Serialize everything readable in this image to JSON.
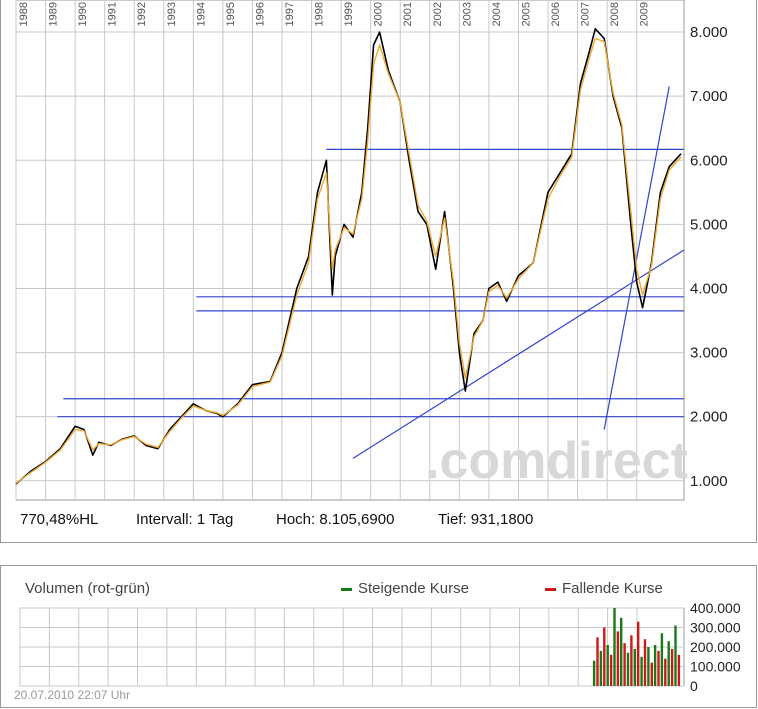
{
  "chart_data": [
    {
      "type": "line",
      "title": "",
      "xlabel": "",
      "ylabel": "",
      "x_ticks": [
        "1988",
        "1989",
        "1990",
        "1991",
        "1992",
        "1993",
        "1994",
        "1995",
        "1996",
        "1997",
        "1998",
        "1999",
        "2000",
        "2001",
        "2002",
        "2003",
        "2004",
        "2005",
        "2006",
        "2007",
        "2008",
        "2009"
      ],
      "y_ticks": [
        "1.000",
        "2.000",
        "3.000",
        "4.000",
        "5.000",
        "6.000",
        "7.000",
        "8.000"
      ],
      "y_tick_values": [
        1000,
        2000,
        3000,
        4000,
        5000,
        6000,
        7000,
        8000
      ],
      "ylim": [
        700,
        8500
      ],
      "xlim": [
        1988.0,
        2010.6
      ],
      "grid": true,
      "series": [
        {
          "color": "#000000",
          "x": [
            1988.0,
            1988.5,
            1989.0,
            1989.5,
            1990.0,
            1990.3,
            1990.6,
            1990.8,
            1991.2,
            1991.6,
            1992.0,
            1992.4,
            1992.8,
            1993.2,
            1993.6,
            1994.0,
            1994.4,
            1994.8,
            1995.0,
            1995.5,
            1996.0,
            1996.6,
            1997.0,
            1997.5,
            1997.9,
            1998.2,
            1998.5,
            1998.7,
            1998.8,
            1999.1,
            1999.4,
            1999.7,
            1999.9,
            2000.1,
            2000.3,
            2000.6,
            2001.0,
            2001.3,
            2001.6,
            2001.9,
            2002.2,
            2002.5,
            2002.8,
            2003.0,
            2003.2,
            2003.5,
            2003.8,
            2004.0,
            2004.3,
            2004.6,
            2005.0,
            2005.5,
            2006.0,
            2006.4,
            2006.8,
            2007.1,
            2007.4,
            2007.6,
            2007.9,
            2008.2,
            2008.5,
            2008.8,
            2009.0,
            2009.2,
            2009.5,
            2009.8,
            2010.1,
            2010.5
          ],
          "values": [
            950,
            1150,
            1300,
            1500,
            1850,
            1800,
            1400,
            1600,
            1550,
            1650,
            1700,
            1550,
            1500,
            1800,
            2000,
            2200,
            2100,
            2050,
            2000,
            2200,
            2500,
            2550,
            3000,
            4000,
            4500,
            5500,
            6000,
            3900,
            4500,
            5000,
            4800,
            5500,
            6500,
            7800,
            8000,
            7400,
            6900,
            6000,
            5200,
            5000,
            4300,
            5200,
            4000,
            3000,
            2400,
            3300,
            3500,
            4000,
            4100,
            3800,
            4200,
            4400,
            5500,
            5800,
            6100,
            7200,
            7700,
            8050,
            7900,
            7000,
            6500,
            5000,
            4100,
            3700,
            4400,
            5500,
            5900,
            6100
          ]
        },
        {
          "color": "#f0a830",
          "x": [
            1988.0,
            1988.5,
            1989.0,
            1989.5,
            1990.0,
            1990.3,
            1990.6,
            1990.8,
            1991.2,
            1991.6,
            1992.0,
            1992.4,
            1992.8,
            1993.2,
            1993.6,
            1994.0,
            1994.4,
            1994.8,
            1995.0,
            1995.5,
            1996.0,
            1996.6,
            1997.0,
            1997.5,
            1997.9,
            1998.2,
            1998.5,
            1998.7,
            1998.8,
            1999.1,
            1999.4,
            1999.7,
            1999.9,
            2000.1,
            2000.3,
            2000.6,
            2001.0,
            2001.3,
            2001.6,
            2001.9,
            2002.2,
            2002.5,
            2002.8,
            2003.0,
            2003.2,
            2003.5,
            2003.8,
            2004.0,
            2004.3,
            2004.6,
            2005.0,
            2005.5,
            2006.0,
            2006.4,
            2006.8,
            2007.1,
            2007.4,
            2007.6,
            2007.9,
            2008.2,
            2008.5,
            2008.8,
            2009.0,
            2009.2,
            2009.5,
            2009.8,
            2010.1,
            2010.5
          ],
          "values": [
            960,
            1130,
            1290,
            1480,
            1800,
            1780,
            1480,
            1580,
            1560,
            1640,
            1690,
            1570,
            1520,
            1770,
            1980,
            2170,
            2100,
            2060,
            2020,
            2180,
            2470,
            2540,
            2950,
            3900,
            4400,
            5400,
            5800,
            4300,
            4600,
            4950,
            4850,
            5400,
            6300,
            7500,
            7800,
            7350,
            6900,
            6100,
            5300,
            5050,
            4500,
            5100,
            4100,
            3150,
            2600,
            3250,
            3500,
            3950,
            4050,
            3850,
            4150,
            4400,
            5400,
            5750,
            6050,
            7100,
            7600,
            7900,
            7850,
            7050,
            6550,
            5200,
            4300,
            3900,
            4350,
            5400,
            5850,
            6050
          ]
        }
      ],
      "trendlines": [
        {
          "x": [
            1998.5,
            2010.6
          ],
          "values": [
            6170,
            6170
          ]
        },
        {
          "x": [
            1994.1,
            2010.6
          ],
          "values": [
            3870,
            3870
          ]
        },
        {
          "x": [
            1994.1,
            2010.6
          ],
          "values": [
            3650,
            3650
          ]
        },
        {
          "x": [
            1989.6,
            2010.6
          ],
          "values": [
            2280,
            2280
          ]
        },
        {
          "x": [
            1989.4,
            2010.6
          ],
          "values": [
            2000,
            2000
          ]
        },
        {
          "x": [
            1999.4,
            2010.6
          ],
          "values": [
            1350,
            4600
          ]
        },
        {
          "x": [
            2007.9,
            2010.1
          ],
          "values": [
            1800,
            7150
          ]
        }
      ]
    },
    {
      "type": "bar",
      "title": "Volumen (rot-grün)",
      "y_ticks": [
        "400.000",
        "300.000",
        "200.000",
        "100.000",
        "0"
      ],
      "y_tick_values": [
        400000,
        300000,
        200000,
        100000,
        0
      ],
      "ylim": [
        0,
        400000
      ],
      "xlim": [
        1988.0,
        2010.6
      ],
      "x_range": [
        2007.5,
        2010.5
      ],
      "peak_values": [
        130000,
        250000,
        180000,
        300000,
        210000,
        160000,
        400000,
        280000,
        350000,
        220000,
        170000,
        260000,
        190000,
        330000,
        150000,
        240000,
        200000,
        120000,
        210000,
        180000,
        270000,
        140000,
        230000,
        190000,
        310000,
        160000
      ],
      "rising_color": "#1a7a1a",
      "falling_color": "#cc1a1a"
    }
  ],
  "stats": {
    "hl": "770,48%HL",
    "interval": "Intervall: 1 Tag",
    "high": "Hoch: 8.105,6900",
    "low": "Tief: 931,1800"
  },
  "watermark": ".comdirect",
  "volume_legend": {
    "rising": "Steigende Kurse",
    "falling": "Fallende Kurse"
  },
  "timestamp": "20.07.2010 22:07 Uhr"
}
